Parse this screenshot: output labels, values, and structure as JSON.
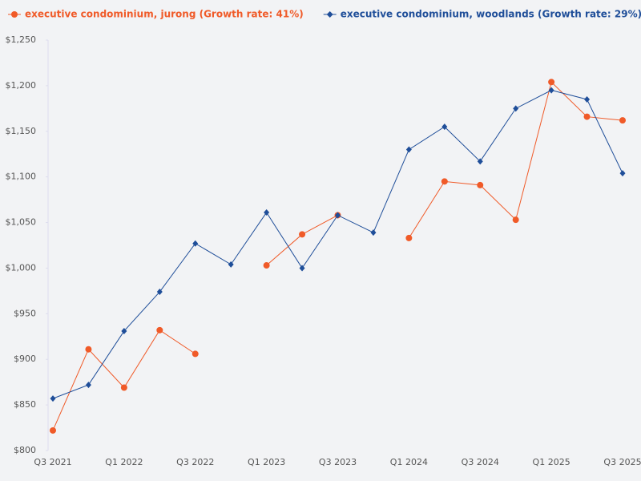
{
  "chart_data": {
    "type": "line",
    "categories": [
      "Q3 2021",
      null,
      "Q1 2022",
      null,
      "Q3 2022",
      null,
      "Q1 2023",
      null,
      "Q3 2023",
      null,
      "Q1 2024",
      null,
      "Q3 2024",
      null,
      "Q1 2025",
      null,
      "Q3 2025"
    ],
    "series": [
      {
        "name": "executive condominium, jurong (Growth rate: 41%)",
        "color": "#f05a28",
        "marker": "circle",
        "values": [
          822,
          911,
          869,
          932,
          906,
          null,
          1003,
          1037,
          1058,
          null,
          1033,
          1095,
          1091,
          1053,
          1204,
          1166,
          1162
        ]
      },
      {
        "name": "executive condominium, woodlands (Growth rate: 29%)",
        "color": "#1f4e99",
        "marker": "diamond",
        "values": [
          857,
          872,
          931,
          974,
          1027,
          1004,
          1061,
          1000,
          1058,
          1039,
          1130,
          1155,
          1117,
          1175,
          1195,
          1185,
          1104
        ]
      }
    ],
    "ylim": [
      800,
      1250
    ],
    "yticks": [
      {
        "value": 800,
        "label": "$800"
      },
      {
        "value": 850,
        "label": "$850"
      },
      {
        "value": 900,
        "label": "$900"
      },
      {
        "value": 950,
        "label": "$950"
      },
      {
        "value": 1000,
        "label": "$1,000"
      },
      {
        "value": 1050,
        "label": "$1,050"
      },
      {
        "value": 1100,
        "label": "$1,100"
      },
      {
        "value": 1150,
        "label": "$1,150"
      },
      {
        "value": 1200,
        "label": "$1,200"
      },
      {
        "value": 1250,
        "label": "$1,250"
      }
    ],
    "grid": false,
    "legend": "top"
  }
}
